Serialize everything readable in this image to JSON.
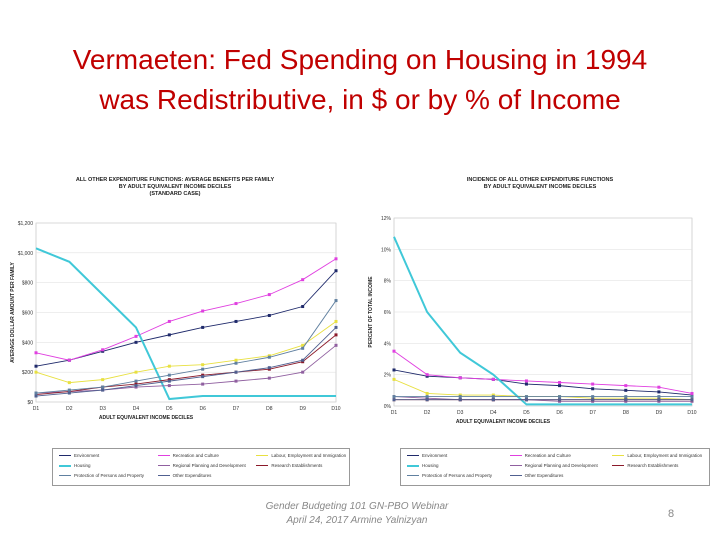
{
  "slide": {
    "title_line1": "Vermaeten: Fed Spending on Housing in 1994",
    "title_line2": "was Redistributive, in $ or by % of Income",
    "footer_line1": "Gender Budgeting 101 GN-PBO Webinar",
    "footer_line2": "April 24, 2017    Armine Yalnizyan",
    "page_number": "8"
  },
  "panels": {
    "left_title_1": "ALL OTHER EXPENDITURE FUNCTIONS: AVERAGE BENEFITS PER FAMILY",
    "left_title_2": "BY ADULT EQUIVALENT INCOME DECILES",
    "left_title_3": "(STANDARD CASE)",
    "right_title_1": "INCIDENCE OF ALL OTHER EXPENDITURE FUNCTIONS",
    "right_title_2": "BY ADULT EQUIVALENT INCOME DECILES"
  },
  "colors": {
    "title": "#c00000",
    "Environment": "#1f2a6b",
    "Recreation and Culture": "#e040e0",
    "Labour, Employment and Immigration": "#e8e040",
    "Housing": "#40c8d8",
    "Regional Planning and Development": "#9060a0",
    "Research Establishments": "#8b1a2a",
    "Protection of Persons and Property": "#6080a0",
    "Other Expenditures": "#506090"
  },
  "chart_data": [
    {
      "type": "line",
      "title": "ALL OTHER EXPENDITURE FUNCTIONS: AVERAGE BENEFITS PER FAMILY BY ADULT EQUIVALENT INCOME DECILES (STANDARD CASE)",
      "xlabel": "ADULT EQUIVALENT INCOME DECILES",
      "ylabel": "AVERAGE DOLLAR AMOUNT PER FAMILY",
      "categories": [
        "D1",
        "D2",
        "D3",
        "D4",
        "D5",
        "D6",
        "D7",
        "D8",
        "D9",
        "D10"
      ],
      "yticks": [
        "$0",
        "$200",
        "$400",
        "$600",
        "$800",
        "$1,000",
        "$1,200"
      ],
      "ylim": [
        0,
        1200
      ],
      "series": [
        {
          "name": "Environment",
          "values": [
            240,
            280,
            340,
            400,
            450,
            500,
            540,
            580,
            640,
            880
          ]
        },
        {
          "name": "Recreation and Culture",
          "values": [
            330,
            280,
            350,
            440,
            540,
            610,
            660,
            720,
            820,
            960
          ]
        },
        {
          "name": "Labour, Employment and Immigration",
          "values": [
            200,
            130,
            150,
            200,
            240,
            250,
            280,
            310,
            380,
            540
          ]
        },
        {
          "name": "Housing",
          "values": [
            1030,
            940,
            720,
            500,
            20,
            40,
            40,
            40,
            40,
            40
          ]
        },
        {
          "name": "Regional Planning and Development",
          "values": [
            60,
            70,
            80,
            100,
            110,
            120,
            140,
            160,
            200,
            380
          ]
        },
        {
          "name": "Research Establishments",
          "values": [
            50,
            70,
            100,
            120,
            150,
            180,
            200,
            220,
            270,
            450
          ]
        },
        {
          "name": "Protection of Persons and Property",
          "values": [
            60,
            80,
            100,
            140,
            180,
            220,
            260,
            300,
            360,
            680
          ]
        },
        {
          "name": "Other Expenditures",
          "values": [
            40,
            60,
            80,
            110,
            140,
            170,
            200,
            230,
            280,
            500
          ]
        }
      ],
      "legend": "bottom"
    },
    {
      "type": "line",
      "title": "INCIDENCE OF ALL OTHER EXPENDITURE FUNCTIONS BY ADULT EQUIVALENT INCOME DECILES",
      "xlabel": "ADULT EQUIVALENT INCOME DECILES",
      "ylabel": "PERCENT OF TOTAL INCOME",
      "categories": [
        "D1",
        "D2",
        "D3",
        "D4",
        "D5",
        "D6",
        "D7",
        "D8",
        "D9",
        "D10"
      ],
      "yticks": [
        "0%",
        "2%",
        "4%",
        "6%",
        "8%",
        "10%",
        "12%"
      ],
      "ylim": [
        0,
        12
      ],
      "series": [
        {
          "name": "Environment",
          "values": [
            2.3,
            1.9,
            1.8,
            1.7,
            1.4,
            1.3,
            1.1,
            1.0,
            0.9,
            0.7
          ]
        },
        {
          "name": "Recreation and Culture",
          "values": [
            3.5,
            2.0,
            1.8,
            1.7,
            1.6,
            1.5,
            1.4,
            1.3,
            1.2,
            0.8
          ]
        },
        {
          "name": "Labour, Employment and Immigration",
          "values": [
            1.7,
            0.8,
            0.7,
            0.7,
            0.6,
            0.6,
            0.5,
            0.5,
            0.5,
            0.4
          ]
        },
        {
          "name": "Housing",
          "values": [
            10.8,
            6.0,
            3.4,
            2.0,
            0.1,
            0.1,
            0.1,
            0.1,
            0.1,
            0.1
          ]
        },
        {
          "name": "Regional Planning and Development",
          "values": [
            0.6,
            0.5,
            0.4,
            0.4,
            0.4,
            0.3,
            0.3,
            0.3,
            0.3,
            0.3
          ]
        },
        {
          "name": "Research Establishments",
          "values": [
            0.4,
            0.4,
            0.4,
            0.4,
            0.4,
            0.4,
            0.4,
            0.4,
            0.4,
            0.4
          ]
        },
        {
          "name": "Protection of Persons and Property",
          "values": [
            0.6,
            0.6,
            0.6,
            0.6,
            0.6,
            0.6,
            0.6,
            0.6,
            0.6,
            0.6
          ]
        },
        {
          "name": "Other Expenditures",
          "values": [
            0.4,
            0.4,
            0.4,
            0.4,
            0.4,
            0.4,
            0.4,
            0.4,
            0.4,
            0.4
          ]
        }
      ],
      "legend": "bottom"
    }
  ],
  "legend_items": [
    "Environment",
    "Recreation and Culture",
    "Labour, Employment and Immigration",
    "Housing",
    "Regional Planning and Development",
    "Research Establishments",
    "Protection of Persons and Property",
    "Other Expenditures"
  ]
}
